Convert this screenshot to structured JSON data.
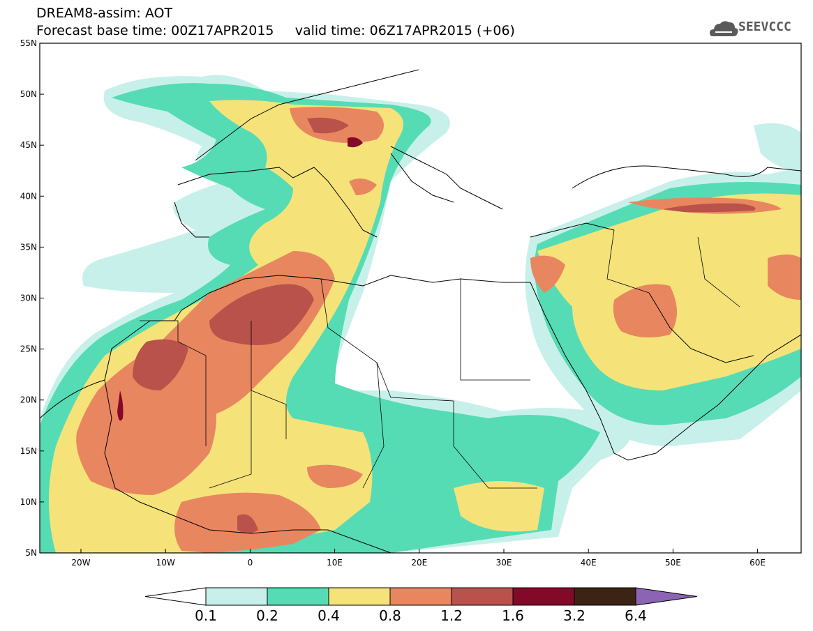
{
  "header": {
    "line1": "DREAM8-assim: AOT",
    "line2": "Forecast base time: 00Z17APR2015     valid time: 06Z17APR2015 (+06)"
  },
  "logo": {
    "text": "SEEVCCC",
    "icon": "cloud-icon"
  },
  "map": {
    "lat_labels": [
      "55N",
      "50N",
      "45N",
      "40N",
      "35N",
      "30N",
      "25N",
      "20N",
      "15N",
      "10N",
      "5N"
    ],
    "lon_labels": [
      "20W",
      "10W",
      "0",
      "10E",
      "20E",
      "30E",
      "40E",
      "50E",
      "60E"
    ]
  },
  "colorbar": {
    "labels": [
      "0.1",
      "0.2",
      "0.4",
      "0.8",
      "1.2",
      "1.6",
      "3.2",
      "6.4"
    ],
    "colors": [
      "#ffffff",
      "#c8f0ea",
      "#55dcb4",
      "#f5e37a",
      "#e8875f",
      "#b9524a",
      "#820a28",
      "#3c2414",
      "#8c64b4"
    ]
  },
  "palette": {
    "c1": "#c8f0ea",
    "c2": "#55dcb4",
    "c3": "#f5e37a",
    "c4": "#e8875f",
    "c5": "#b9524a",
    "c6": "#820a28"
  }
}
